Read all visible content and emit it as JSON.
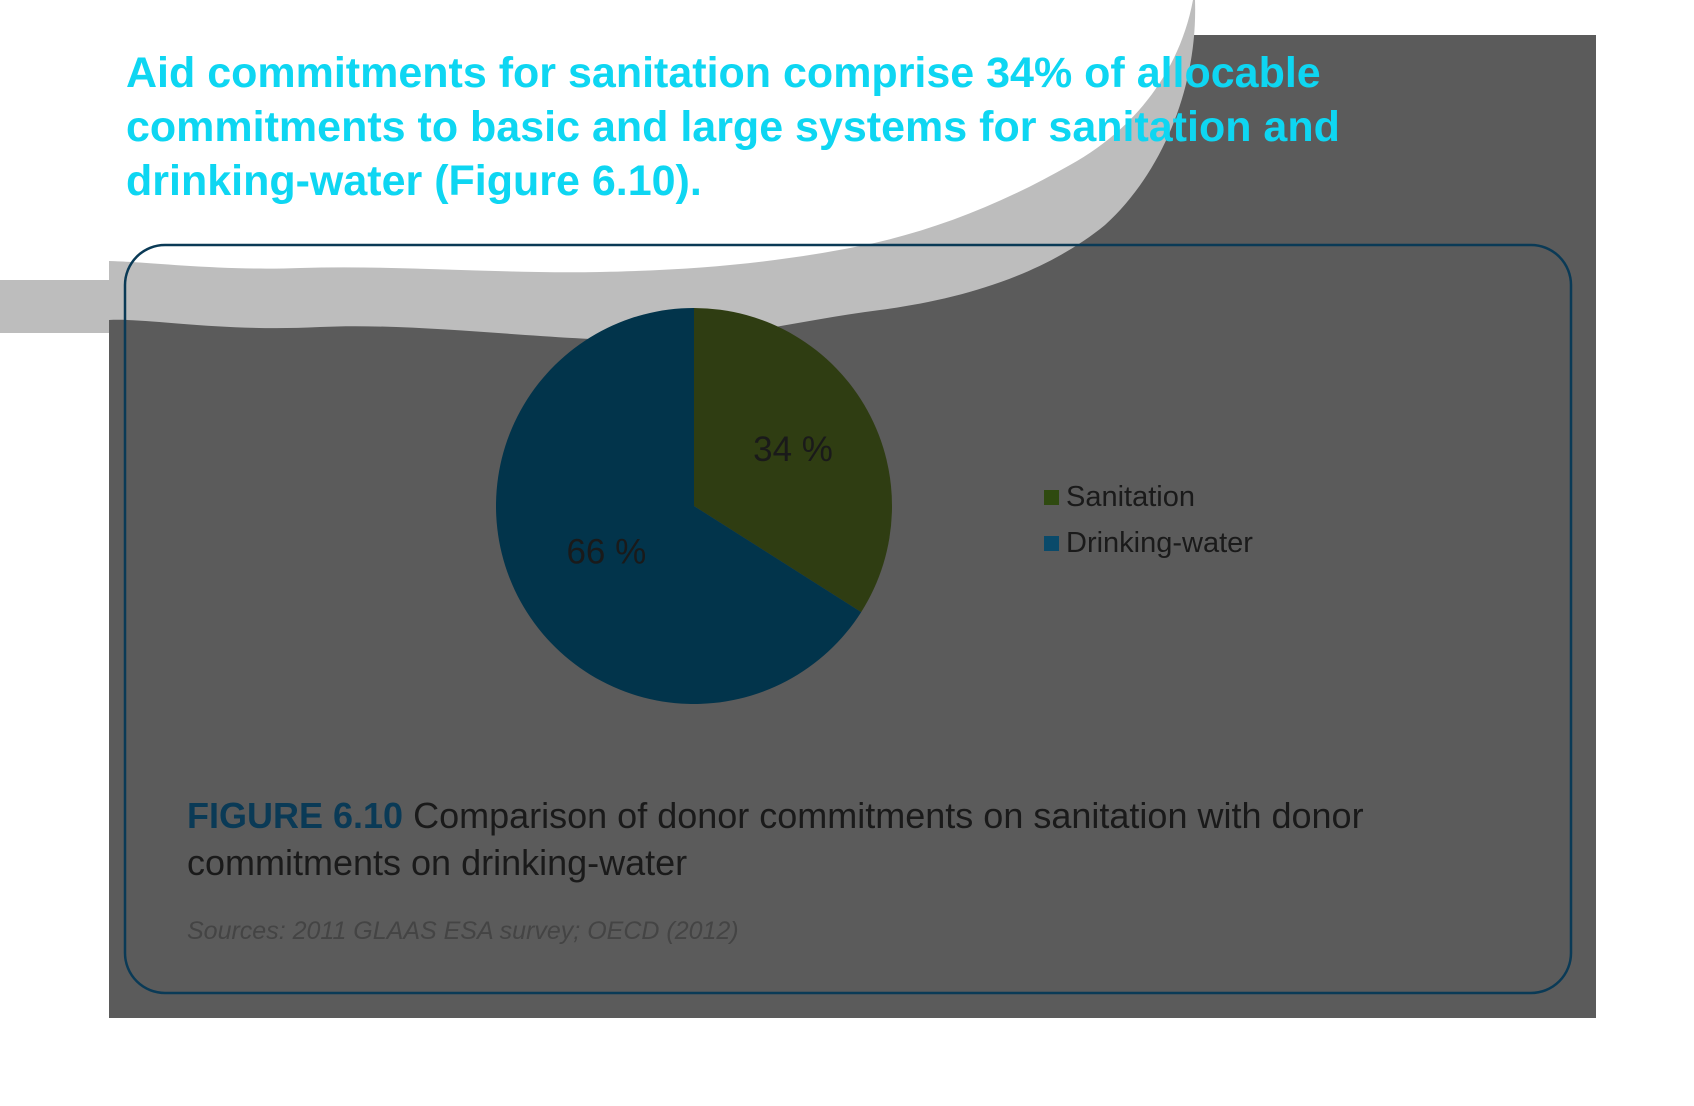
{
  "headline": "Aid commitments for sanitation comprise 34% of allocable commitments to basic and large systems for sanitation and drinking-water (Figure 6.10).",
  "figure": {
    "number": "FIGURE 6.10",
    "caption": "Comparison of donor commitments on sanitation with donor commitments on drinking-water",
    "source": "Sources: 2011 GLAAS ESA survey; OECD (2012)"
  },
  "colors": {
    "headline": "#0ed6f2",
    "panel_bg": "#5b5b5b",
    "panel_border": "#0a3a56",
    "sanitation": "#2f3d12",
    "drinking_water": "#02344b",
    "legend_sanitation": "#2f4a10",
    "legend_drinking_water": "#0a4a6a",
    "wave_band": "#bdbdbd"
  },
  "chart_data": {
    "type": "pie",
    "title": "",
    "slices": [
      {
        "name": "Sanitation",
        "value": 34,
        "label": "34 %",
        "color": "#2f3d12",
        "legend_color": "#2f4a10"
      },
      {
        "name": "Drinking-water",
        "value": 66,
        "label": "66 %",
        "color": "#02344b",
        "legend_color": "#0a4a6a"
      }
    ],
    "start_angle": "12 o'clock",
    "direction": "clockwise",
    "legend_position": "right"
  }
}
